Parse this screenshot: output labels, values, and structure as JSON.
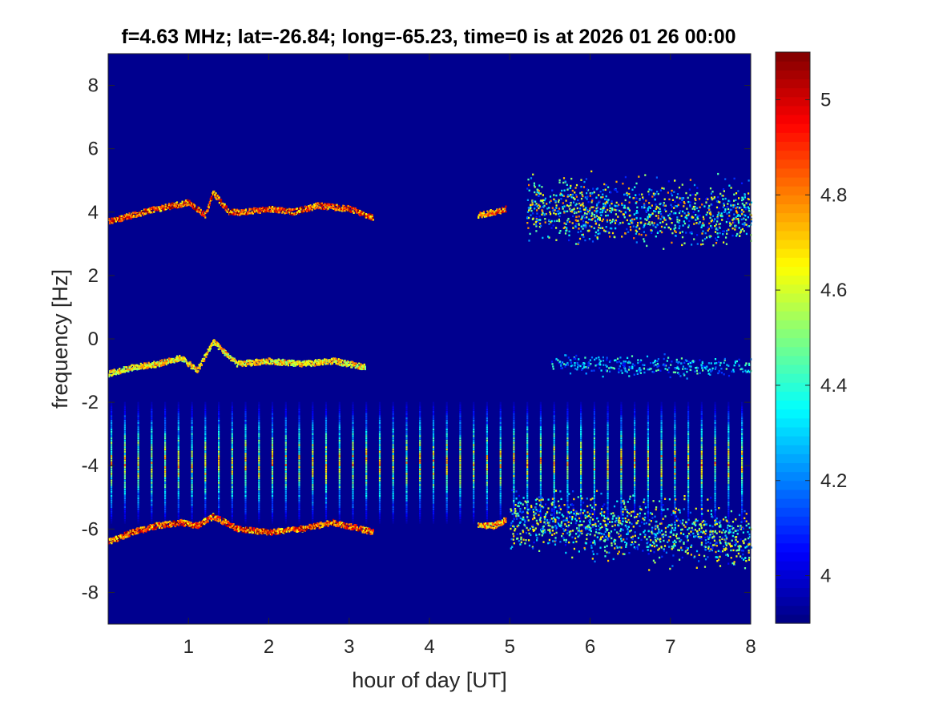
{
  "chart_data": {
    "type": "heatmap",
    "title": "f=4.63 MHz;  lat=-26.84; long=-65.23, time=0 is at 2026 01 26 00:00",
    "xlabel": "hour of day [UT]",
    "ylabel": "frequency [Hz]",
    "xlim": [
      0,
      8
    ],
    "ylim": [
      -9,
      9
    ],
    "x_ticks": [
      1,
      2,
      3,
      4,
      5,
      6,
      7,
      8
    ],
    "y_ticks": [
      -8,
      -6,
      -4,
      -2,
      0,
      2,
      4,
      6,
      8
    ],
    "colorbar": {
      "colormap": "jet",
      "clim": [
        3.9,
        5.1
      ],
      "ticks": [
        4,
        4.2,
        4.4,
        4.6,
        4.8,
        5
      ]
    },
    "background_color": "#00008F",
    "features": [
      {
        "kind": "trace",
        "x": [
          0,
          0.3,
          0.6,
          0.8,
          1.0,
          1.2,
          1.3,
          1.5,
          1.7,
          2.0,
          2.3,
          2.6,
          3.0,
          3.3
        ],
        "y": [
          3.7,
          3.9,
          4.1,
          4.2,
          4.3,
          3.9,
          4.6,
          4.0,
          4.0,
          4.1,
          4.0,
          4.2,
          4.1,
          3.8
        ],
        "level": 4.75
      },
      {
        "kind": "trace",
        "x": [
          4.6,
          4.8,
          4.95
        ],
        "y": [
          3.9,
          4.0,
          4.1
        ],
        "level": 4.7
      },
      {
        "kind": "trace",
        "x": [
          0,
          0.3,
          0.6,
          0.9,
          1.1,
          1.3,
          1.6,
          2.0,
          2.4,
          2.8,
          3.2
        ],
        "y": [
          -1.1,
          -0.9,
          -0.8,
          -0.6,
          -1.0,
          -0.1,
          -0.8,
          -0.7,
          -0.8,
          -0.7,
          -0.9
        ],
        "level": 4.5
      },
      {
        "kind": "trace",
        "x": [
          0,
          0.3,
          0.6,
          0.9,
          1.1,
          1.3,
          1.6,
          2.0,
          2.4,
          2.8,
          3.3
        ],
        "y": [
          -6.4,
          -6.1,
          -5.9,
          -5.8,
          -5.9,
          -5.6,
          -6.0,
          -6.1,
          -6.0,
          -5.8,
          -6.1
        ],
        "level": 4.75
      },
      {
        "kind": "trace",
        "x": [
          4.6,
          4.8,
          4.95
        ],
        "y": [
          -5.9,
          -5.9,
          -5.7
        ],
        "level": 4.6
      },
      {
        "kind": "cloud",
        "x": [
          5.2,
          8.0
        ],
        "y_center": [
          4.1,
          3.9
        ],
        "spread": 0.9,
        "level": 4.6
      },
      {
        "kind": "cloud",
        "x": [
          5.0,
          8.0
        ],
        "y_center": [
          -5.7,
          -6.3
        ],
        "spread": 0.9,
        "level": 4.55
      },
      {
        "kind": "cloud",
        "x": [
          5.5,
          8.0
        ],
        "y_center": [
          -0.8,
          -0.9
        ],
        "spread": 0.3,
        "level": 4.3
      }
    ],
    "periodic_stripes": {
      "x_start": 0.03,
      "x_end": 7.88,
      "count": 48,
      "y_range": [
        -5.8,
        -2.0
      ],
      "level_peak": 4.75
    }
  }
}
